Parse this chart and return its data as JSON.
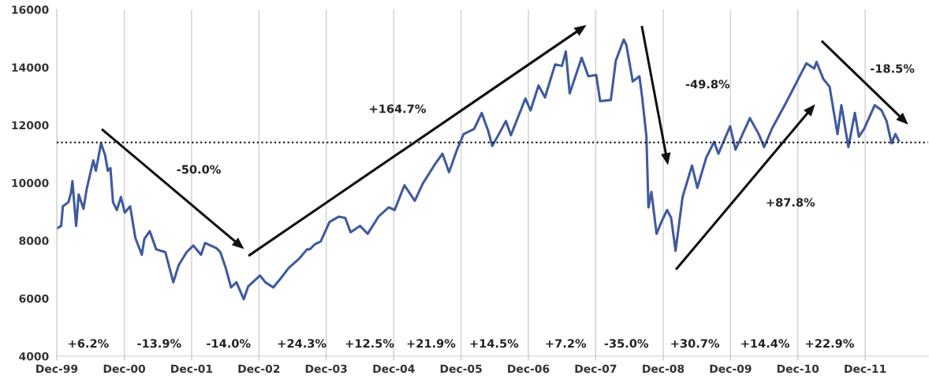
{
  "chart_data": {
    "type": "line",
    "x": [
      "1999-12-01",
      "1999-12-25",
      "2000-01-03",
      "2000-02-02",
      "2000-02-16",
      "2000-02-24",
      "2000-03-15",
      "2000-03-29",
      "2000-04-24",
      "2000-05-11",
      "2000-06-16",
      "2000-06-30",
      "2000-07-28",
      "2000-08-19",
      "2000-09-03",
      "2000-09-17",
      "2000-10-01",
      "2000-10-22",
      "2000-11-13",
      "2000-12-04",
      "2001-01-02",
      "2001-01-30",
      "2001-03-06",
      "2001-03-20",
      "2001-04-18",
      "2001-05-23",
      "2001-07-12",
      "2001-08-24",
      "2001-09-22",
      "2001-11-04",
      "2001-12-10",
      "2002-01-21",
      "2002-02-12",
      "2002-04-15",
      "2002-05-06",
      "2002-06-04",
      "2002-07-03",
      "2002-08-01",
      "2002-09-10",
      "2002-10-04",
      "2002-12-07",
      "2003-01-05",
      "2003-02-17",
      "2003-03-30",
      "2003-05-12",
      "2003-07-08",
      "2003-08-19",
      "2003-09-03",
      "2003-10-01",
      "2003-11-01",
      "2003-12-19",
      "2004-02-07",
      "2004-03-13",
      "2004-04-11",
      "2004-06-01",
      "2004-07-13",
      "2004-09-09",
      "2004-11-04",
      "2004-12-06",
      "2005-01-28",
      "2005-03-25",
      "2005-05-07",
      "2005-07-17",
      "2005-08-22",
      "2005-09-27",
      "2005-11-09",
      "2005-12-15",
      "2006-02-10",
      "2006-03-23",
      "2006-04-28",
      "2006-05-19",
      "2006-06-24",
      "2006-08-01",
      "2006-08-28",
      "2006-11-15",
      "2006-12-13",
      "2007-01-25",
      "2007-03-01",
      "2007-04-25",
      "2007-06-01",
      "2007-06-22",
      "2007-07-13",
      "2007-09-16",
      "2007-10-22",
      "2007-12-04",
      "2007-12-25",
      "2008-02-21",
      "2008-03-19",
      "2008-05-01",
      "2008-05-15",
      "2008-06-19",
      "2008-07-25",
      "2008-08-09",
      "2008-09-01",
      "2008-09-12",
      "2008-09-28",
      "2008-10-26",
      "2008-11-24",
      "2008-12-22",
      "2009-01-13",
      "2009-02-06",
      "2009-03-16",
      "2009-05-06",
      "2009-06-04",
      "2009-07-22",
      "2009-09-03",
      "2009-09-26",
      "2009-11-29",
      "2009-12-28",
      "2010-03-16",
      "2010-05-03",
      "2010-06-01",
      "2010-07-13",
      "2010-09-24",
      "2010-11-19",
      "2011-01-16",
      "2011-02-28",
      "2011-03-12",
      "2011-04-18",
      "2011-05-22",
      "2011-07-04",
      "2011-07-25",
      "2011-09-01",
      "2011-10-06",
      "2011-10-28",
      "2011-11-25",
      "2012-01-22",
      "2012-02-28",
      "2012-03-26",
      "2012-04-22",
      "2012-05-13",
      "2012-05-31"
    ],
    "series": [
      {
        "color": "#3f5a9e",
        "values": [
          8420,
          8510,
          9190,
          9330,
          9650,
          10060,
          8510,
          9600,
          9100,
          9780,
          10780,
          10420,
          11370,
          10960,
          10420,
          10510,
          9330,
          9060,
          9510,
          8970,
          9190,
          8100,
          7510,
          8060,
          8330,
          7700,
          7600,
          6560,
          7150,
          7600,
          7830,
          7510,
          7920,
          7740,
          7600,
          7060,
          6380,
          6560,
          5970,
          6420,
          6790,
          6560,
          6380,
          6700,
          7060,
          7380,
          7700,
          7700,
          7880,
          7970,
          8650,
          8830,
          8790,
          8290,
          8510,
          8240,
          8830,
          9150,
          9060,
          9920,
          9380,
          9970,
          10690,
          11010,
          10370,
          11150,
          11690,
          11870,
          12420,
          11780,
          11280,
          11690,
          12140,
          11650,
          12920,
          12510,
          13370,
          12960,
          14100,
          14050,
          14550,
          13100,
          14330,
          13690,
          13730,
          12830,
          12870,
          14230,
          14960,
          14780,
          13510,
          13690,
          12960,
          11600,
          9150,
          9690,
          8240,
          8690,
          9060,
          8790,
          7650,
          9510,
          10600,
          9830,
          10870,
          11420,
          11010,
          11960,
          11150,
          12240,
          11690,
          11240,
          11870,
          12730,
          13420,
          14140,
          13960,
          14190,
          13600,
          13330,
          11690,
          12690,
          11240,
          12420,
          11600,
          11870,
          12690,
          12510,
          12140,
          11370,
          11690,
          11460
        ]
      }
    ],
    "xlim": [
      "1999-12-01",
      "2012-11-06"
    ],
    "xticks": [
      {
        "value": "1999-12-01",
        "label": "Dec-99"
      },
      {
        "value": "2000-12-01",
        "label": "Dec-00"
      },
      {
        "value": "2001-12-01",
        "label": "Dec-01"
      },
      {
        "value": "2002-12-01",
        "label": "Dec-02"
      },
      {
        "value": "2003-12-01",
        "label": "Dec-03"
      },
      {
        "value": "2004-12-01",
        "label": "Dec-04"
      },
      {
        "value": "2005-12-01",
        "label": "Dec-05"
      },
      {
        "value": "2006-12-01",
        "label": "Dec-06"
      },
      {
        "value": "2007-12-01",
        "label": "Dec-07"
      },
      {
        "value": "2008-12-01",
        "label": "Dec-08"
      },
      {
        "value": "2009-12-01",
        "label": "Dec-09"
      },
      {
        "value": "2010-12-01",
        "label": "Dec-10"
      },
      {
        "value": "2011-12-01",
        "label": "Dec-11"
      }
    ],
    "ylim": [
      4000,
      16000
    ],
    "yticks": [
      4000,
      6000,
      8000,
      10000,
      12000,
      14000,
      16000
    ],
    "grid": "x",
    "ref_lines": [
      {
        "axis": "y",
        "value": 11400,
        "color": "#000000",
        "line_style": "dotted"
      }
    ],
    "annotations": [
      "-50.0%",
      "+164.7%",
      "-49.8%",
      "+87.8%",
      "-18.5%",
      "+6.2%",
      "-13.9%",
      "-14.0%",
      "+24.3%",
      "+12.5%",
      "+21.9%",
      "+14.5%",
      "+7.2%",
      "-35.0%",
      "+30.7%",
      "+14.4%",
      "+22.9%"
    ]
  }
}
